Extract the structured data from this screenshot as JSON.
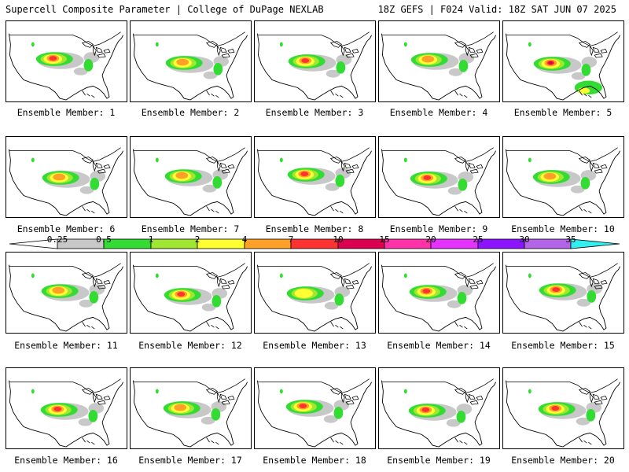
{
  "header": {
    "left_title": "Supercell Composite Parameter | College of DuPage NEXLAB",
    "right_title": "18Z GEFS | F024 Valid: 18Z SAT JUN 07 2025"
  },
  "panel_label_prefix": "Ensemble Member: ",
  "members": [
    {
      "id": 1,
      "label": "Ensemble Member: 1",
      "max_level": 6
    },
    {
      "id": 2,
      "label": "Ensemble Member: 2",
      "max_level": 5
    },
    {
      "id": 3,
      "label": "Ensemble Member: 3",
      "max_level": 6
    },
    {
      "id": 4,
      "label": "Ensemble Member: 4",
      "max_level": 5
    },
    {
      "id": 5,
      "label": "Ensemble Member: 5",
      "max_level": 7
    },
    {
      "id": 6,
      "label": "Ensemble Member: 6",
      "max_level": 5
    },
    {
      "id": 7,
      "label": "Ensemble Member: 7",
      "max_level": 5
    },
    {
      "id": 8,
      "label": "Ensemble Member: 8",
      "max_level": 6
    },
    {
      "id": 9,
      "label": "Ensemble Member: 9",
      "max_level": 6
    },
    {
      "id": 10,
      "label": "Ensemble Member: 10",
      "max_level": 5
    },
    {
      "id": 11,
      "label": "Ensemble Member: 11",
      "max_level": 5
    },
    {
      "id": 12,
      "label": "Ensemble Member: 12",
      "max_level": 6
    },
    {
      "id": 13,
      "label": "Ensemble Member: 13",
      "max_level": 4
    },
    {
      "id": 14,
      "label": "Ensemble Member: 14",
      "max_level": 6
    },
    {
      "id": 15,
      "label": "Ensemble Member: 15",
      "max_level": 6
    },
    {
      "id": 16,
      "label": "Ensemble Member: 16",
      "max_level": 6
    },
    {
      "id": 17,
      "label": "Ensemble Member: 17",
      "max_level": 5
    },
    {
      "id": 18,
      "label": "Ensemble Member: 18",
      "max_level": 6
    },
    {
      "id": 19,
      "label": "Ensemble Member: 19",
      "max_level": 6
    },
    {
      "id": 20,
      "label": "Ensemble Member: 20",
      "max_level": 6
    }
  ],
  "colorbar": {
    "ticks": [
      "0.25",
      "0.5",
      "1",
      "2",
      "4",
      "7",
      "10",
      "15",
      "20",
      "25",
      "30",
      "35"
    ],
    "colors": [
      "#c8c8c8",
      "#32dc32",
      "#a0e632",
      "#ffff32",
      "#ffa028",
      "#ff3232",
      "#dc0050",
      "#ff32aa",
      "#e632ff",
      "#8c14ff",
      "#b464e6",
      "#32f0f0"
    ]
  }
}
